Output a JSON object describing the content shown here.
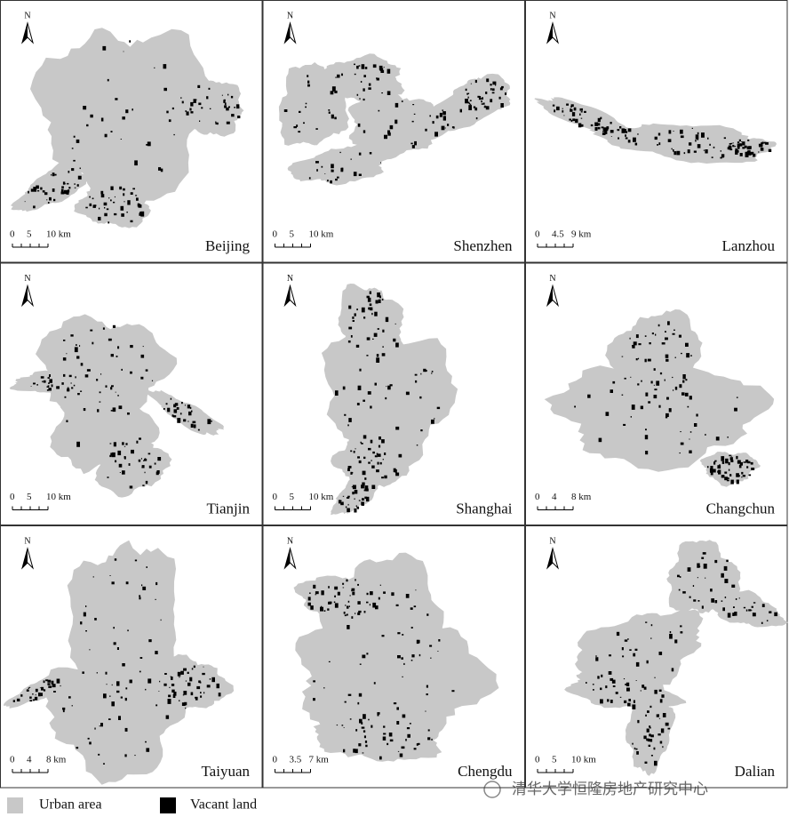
{
  "panels": [
    {
      "name": "Beijing",
      "north": "N",
      "scale": [
        "0",
        "5",
        "10 km"
      ]
    },
    {
      "name": "Shenzhen",
      "north": "N",
      "scale": [
        "0",
        "5",
        "10 km"
      ]
    },
    {
      "name": "Lanzhou",
      "north": "N",
      "scale": [
        "0",
        "4.5",
        "9 km"
      ]
    },
    {
      "name": "Tianjin",
      "north": "N",
      "scale": [
        "0",
        "5",
        "10 km"
      ]
    },
    {
      "name": "Shanghai",
      "north": "N",
      "scale": [
        "0",
        "5",
        "10 km"
      ]
    },
    {
      "name": "Changchun",
      "north": "N",
      "scale": [
        "0",
        "4",
        "8 km"
      ]
    },
    {
      "name": "Taiyuan",
      "north": "N",
      "scale": [
        "0",
        "4",
        "8 km"
      ]
    },
    {
      "name": "Chengdu",
      "north": "N",
      "scale": [
        "0",
        "3.5",
        "7 km"
      ]
    },
    {
      "name": "Dalian",
      "north": "N",
      "scale": [
        "0",
        "5",
        "10 km"
      ]
    }
  ],
  "legend": [
    "Urban area",
    "Vacant land"
  ],
  "watermark": "清华大学恒隆房地产研究中心"
}
